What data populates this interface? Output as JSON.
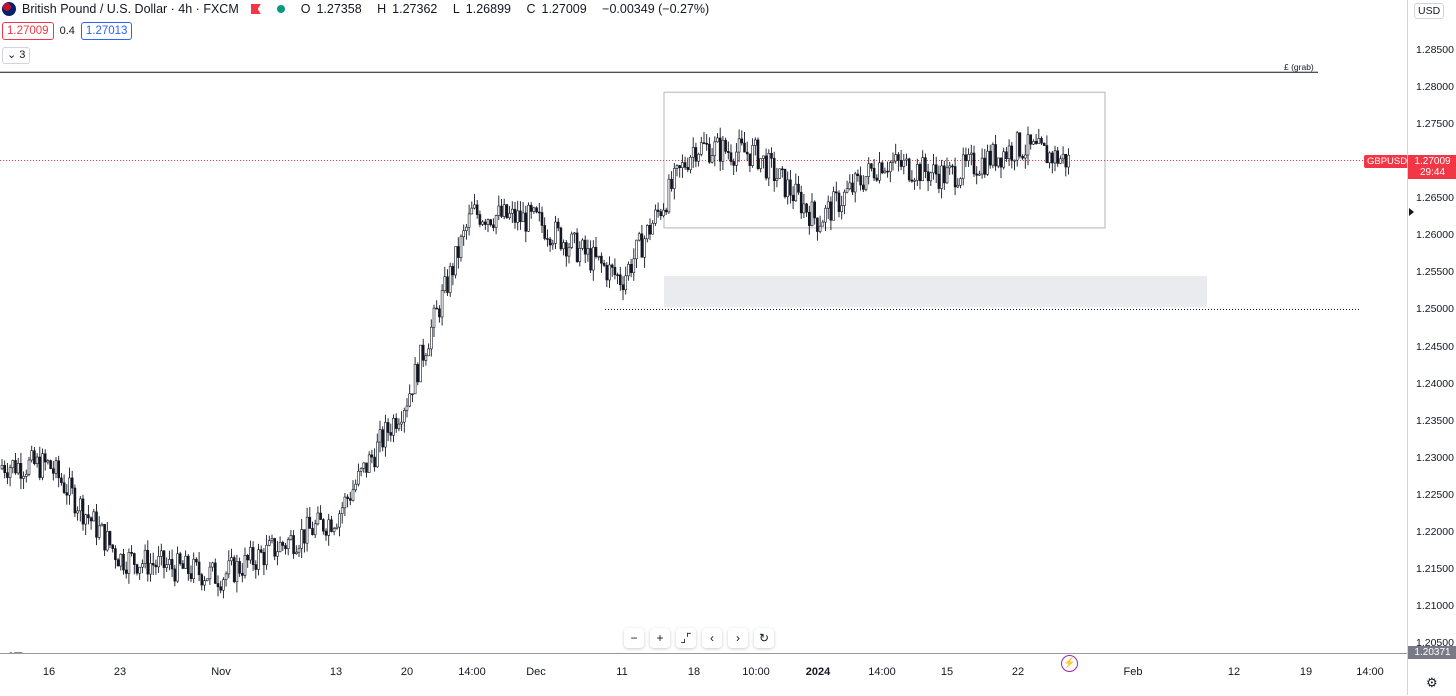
{
  "legend": {
    "symbol": "British Pound / U.S. Dollar · 4h · FXCM",
    "open_label": "O",
    "open": "1.27358",
    "high_label": "H",
    "high": "1.27362",
    "low_label": "L",
    "low": "1.26899",
    "close_label": "C",
    "close": "1.27009",
    "change": "−0.00349 (−0.27%)",
    "sell_price": "1.27009",
    "spread": "0.4",
    "buy_price": "1.27013",
    "indicators_count": "3",
    "colors": {
      "down": "#f23645",
      "up": "#089981",
      "buy": "#2962ff"
    }
  },
  "price_axis": {
    "currency": "USD",
    "ticks": [
      "1.28500",
      "1.28000",
      "1.27500",
      "1.27000",
      "1.26500",
      "1.26000",
      "1.25500",
      "1.25000",
      "1.24500",
      "1.24000",
      "1.23500",
      "1.23000",
      "1.22500",
      "1.22000",
      "1.21500",
      "1.21000",
      "1.20500"
    ],
    "last_price": "1.27009",
    "countdown": "29:44",
    "symbol_tag": "GBPUSD",
    "low_marker": "1.20371"
  },
  "time_axis": {
    "ticks": [
      {
        "label": "16",
        "bold": false
      },
      {
        "label": "23",
        "bold": false
      },
      {
        "label": "Nov",
        "bold": false
      },
      {
        "label": "13",
        "bold": false
      },
      {
        "label": "20",
        "bold": false
      },
      {
        "label": "14:00",
        "bold": false
      },
      {
        "label": "Dec",
        "bold": false
      },
      {
        "label": "11",
        "bold": false
      },
      {
        "label": "18",
        "bold": false
      },
      {
        "label": "10:00",
        "bold": false
      },
      {
        "label": "2024",
        "bold": true
      },
      {
        "label": "14:00",
        "bold": false
      },
      {
        "label": "15",
        "bold": false
      },
      {
        "label": "22",
        "bold": false
      },
      {
        "label": "Feb",
        "bold": false
      },
      {
        "label": "12",
        "bold": false
      },
      {
        "label": "19",
        "bold": false
      },
      {
        "label": "14:00",
        "bold": false
      }
    ]
  },
  "annotations": {
    "grab_label": "£ (grab)"
  },
  "navigation": {
    "zoom_out": "−",
    "zoom_in": "+",
    "reset_scale": "⌟⌜",
    "scroll_left": "‹",
    "scroll_right": "›",
    "reset": "↻"
  },
  "branding": {
    "logo": "17"
  },
  "chart_data": {
    "type": "candlestick",
    "title": "British Pound / U.S. Dollar · 4h · FXCM",
    "ylim": [
      1.2035,
      1.2883
    ],
    "y_scale": "linear",
    "grid": false,
    "x_ticks": [
      "16",
      "23",
      "Nov",
      "13",
      "20",
      "14:00",
      "Dec",
      "11",
      "18",
      "10:00",
      "2024",
      "14:00",
      "15",
      "22",
      "Feb",
      "12",
      "19",
      "14:00"
    ],
    "close_path_anchors": [
      {
        "x": "16",
        "y": 1.229
      },
      {
        "x": "23",
        "y": 1.2165
      },
      {
        "x": "Nov",
        "y": 1.214
      },
      {
        "x": "13",
        "y": 1.222
      },
      {
        "x": "20",
        "y": 1.238
      },
      {
        "x": "14:00",
        "y": 1.263
      },
      {
        "x": "Dec",
        "y": 1.262
      },
      {
        "x": "11",
        "y": 1.254
      },
      {
        "x": "18",
        "y": 1.272
      },
      {
        "x": "10:00",
        "y": 1.271
      },
      {
        "x": "2024",
        "y": 1.262
      },
      {
        "x": "14:00",
        "y": 1.27
      },
      {
        "x": "15",
        "y": 1.268
      },
      {
        "x": "22",
        "y": 1.272
      },
      {
        "x": "22",
        "y": 1.27
      }
    ],
    "last_close": 1.27009,
    "low_marker": 1.20371,
    "horizontal_lines": [
      {
        "name": "£ (grab)",
        "value": 1.282
      },
      {
        "name": "",
        "value": 1.25,
        "style": "dotted"
      },
      {
        "name": "",
        "value": 1.27009,
        "style": "dotted",
        "color": "#f23645"
      }
    ],
    "rectangles": [
      {
        "name": "",
        "top": 1.2793,
        "bottom": 1.261,
        "style": "outline"
      },
      {
        "name": "",
        "top": 1.2545,
        "bottom": 1.2503,
        "style": "filled"
      }
    ]
  }
}
